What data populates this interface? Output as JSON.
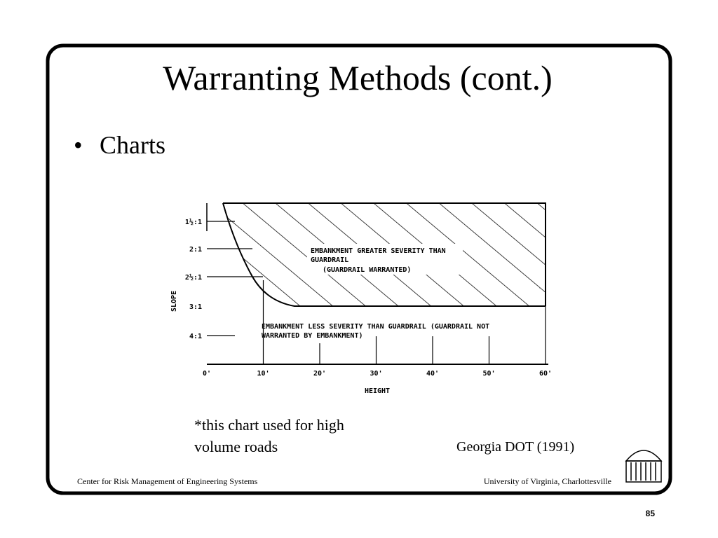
{
  "slide": {
    "title": "Warranting Methods (cont.)",
    "bullets": [
      "Charts"
    ],
    "figure": {
      "y_axis_label": "SLOPE",
      "y_tick_labels": [
        "1½:1",
        "2:1",
        "2½:1",
        "3:1",
        "4:1"
      ],
      "x_axis_label": "HEIGHT",
      "x_tick_labels": [
        "0'",
        "10'",
        "20'",
        "30'",
        "40'",
        "50'",
        "60'"
      ],
      "upper_region": [
        "EMBANKMENT GREATER SEVERITY THAN",
        "GUARDRAIL",
        "(GUARDRAIL WARRANTED)"
      ],
      "lower_region": [
        "EMBANKMENT LESS SEVERITY THAN GUARDRAIL (GUARDRAIL NOT",
        "WARRANTED BY EMBANKMENT)"
      ]
    },
    "note": [
      "*this chart used for high",
      "volume roads"
    ],
    "source": "Georgia DOT (1991)",
    "footer_left": "Center for Risk Management of Engineering Systems",
    "footer_right": "University of Virginia, Charlottesville",
    "page_number": "85"
  }
}
